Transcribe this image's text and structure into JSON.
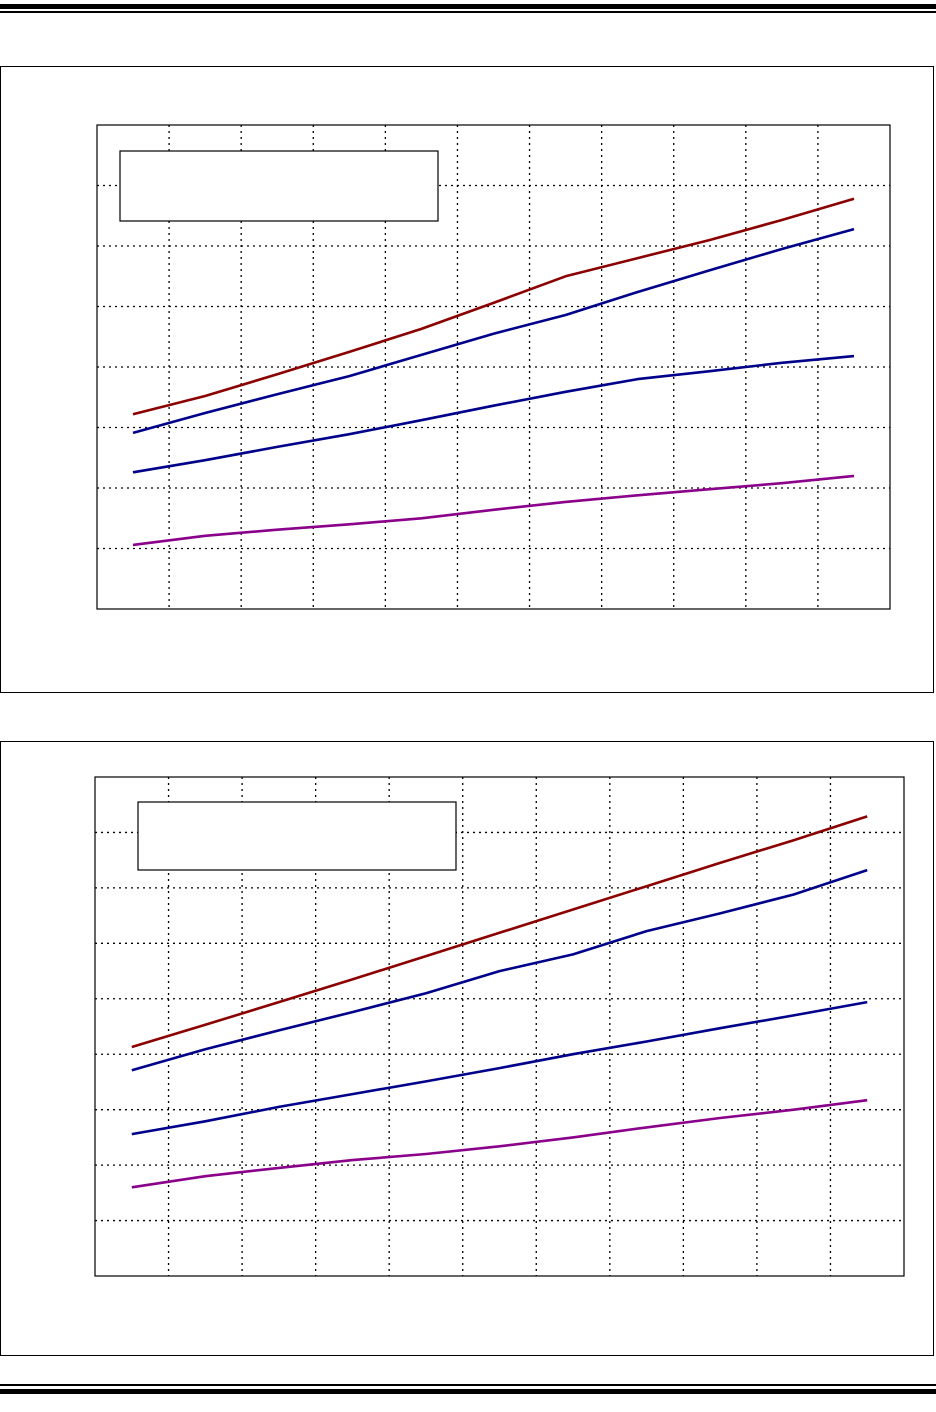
{
  "chart_data": [
    {
      "type": "line",
      "title": "",
      "xlabel": "",
      "ylabel": "",
      "xlim": [
        -0.5,
        10.5
      ],
      "ylim": [
        0,
        8
      ],
      "grid": true,
      "legend": "top-left",
      "x": [
        0,
        1,
        2,
        3,
        4,
        5,
        6,
        7,
        8,
        9,
        10
      ],
      "series": [
        {
          "color": "#8b0000",
          "values": [
            3.22,
            3.52,
            3.88,
            4.25,
            4.63,
            5.06,
            5.5,
            5.8,
            6.1,
            6.43,
            6.78
          ]
        },
        {
          "color": "#00008b",
          "values": [
            2.91,
            3.24,
            3.55,
            3.85,
            4.2,
            4.55,
            4.86,
            5.24,
            5.6,
            5.95,
            6.28
          ]
        },
        {
          "color": "#00008b",
          "values": [
            2.26,
            2.46,
            2.68,
            2.89,
            3.12,
            3.36,
            3.59,
            3.8,
            3.93,
            4.07,
            4.18
          ]
        },
        {
          "color": "#8b008b",
          "values": [
            1.06,
            1.21,
            1.31,
            1.4,
            1.5,
            1.64,
            1.77,
            1.88,
            1.98,
            2.08,
            2.2
          ]
        }
      ]
    },
    {
      "type": "line",
      "title": "",
      "xlabel": "",
      "ylabel": "",
      "xlim": [
        -0.5,
        10.5
      ],
      "ylim": [
        0,
        9
      ],
      "grid": true,
      "legend": "top-left",
      "x": [
        0,
        1,
        2,
        3,
        4,
        5,
        6,
        7,
        8,
        9,
        10
      ],
      "series": [
        {
          "color": "#8b0000",
          "values": [
            4.13,
            4.53,
            4.94,
            5.35,
            5.77,
            6.19,
            6.61,
            7.03,
            7.45,
            7.86,
            8.29
          ]
        },
        {
          "color": "#00008b",
          "values": [
            3.71,
            4.09,
            4.43,
            4.76,
            5.1,
            5.5,
            5.8,
            6.22,
            6.54,
            6.88,
            7.32
          ]
        },
        {
          "color": "#00008b",
          "values": [
            2.56,
            2.79,
            3.05,
            3.28,
            3.51,
            3.75,
            4.0,
            4.23,
            4.47,
            4.7,
            4.94
          ]
        },
        {
          "color": "#8b008b",
          "values": [
            1.6,
            1.8,
            1.95,
            2.09,
            2.2,
            2.34,
            2.5,
            2.68,
            2.85,
            3.0,
            3.17
          ]
        }
      ]
    }
  ]
}
